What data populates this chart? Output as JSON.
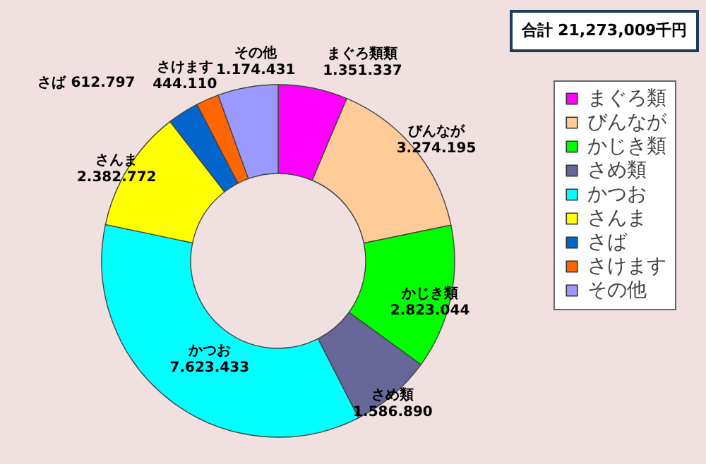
{
  "chart_data": {
    "type": "donut",
    "categories": [
      "まぐろ類",
      "びんなが",
      "かじき類",
      "さめ類",
      "かつお",
      "さんま",
      "さば",
      "さけます",
      "その他"
    ],
    "values": [
      1351337,
      3274195,
      2823044,
      1586890,
      7623433,
      2382772,
      612797,
      444110,
      1174431
    ],
    "colors": [
      "#ff00ff",
      "#ffcc99",
      "#00ff00",
      "#666699",
      "#00ffff",
      "#ffff00",
      "#0066cc",
      "#ff6600",
      "#9999ff"
    ],
    "value_labels": [
      "まぐろ類類\n1.351.337",
      "びんなが\n3.274.195",
      "かじき類\n2.823.044",
      "さめ類\n1.586.890",
      "かつお\n7.623.433",
      "さんま\n2.382.772",
      "さば 612.797",
      "さけます\n444.110",
      "その他\n1.174.431"
    ],
    "annotations": [
      "合計 21,273,009千円"
    ],
    "legend": "right"
  }
}
